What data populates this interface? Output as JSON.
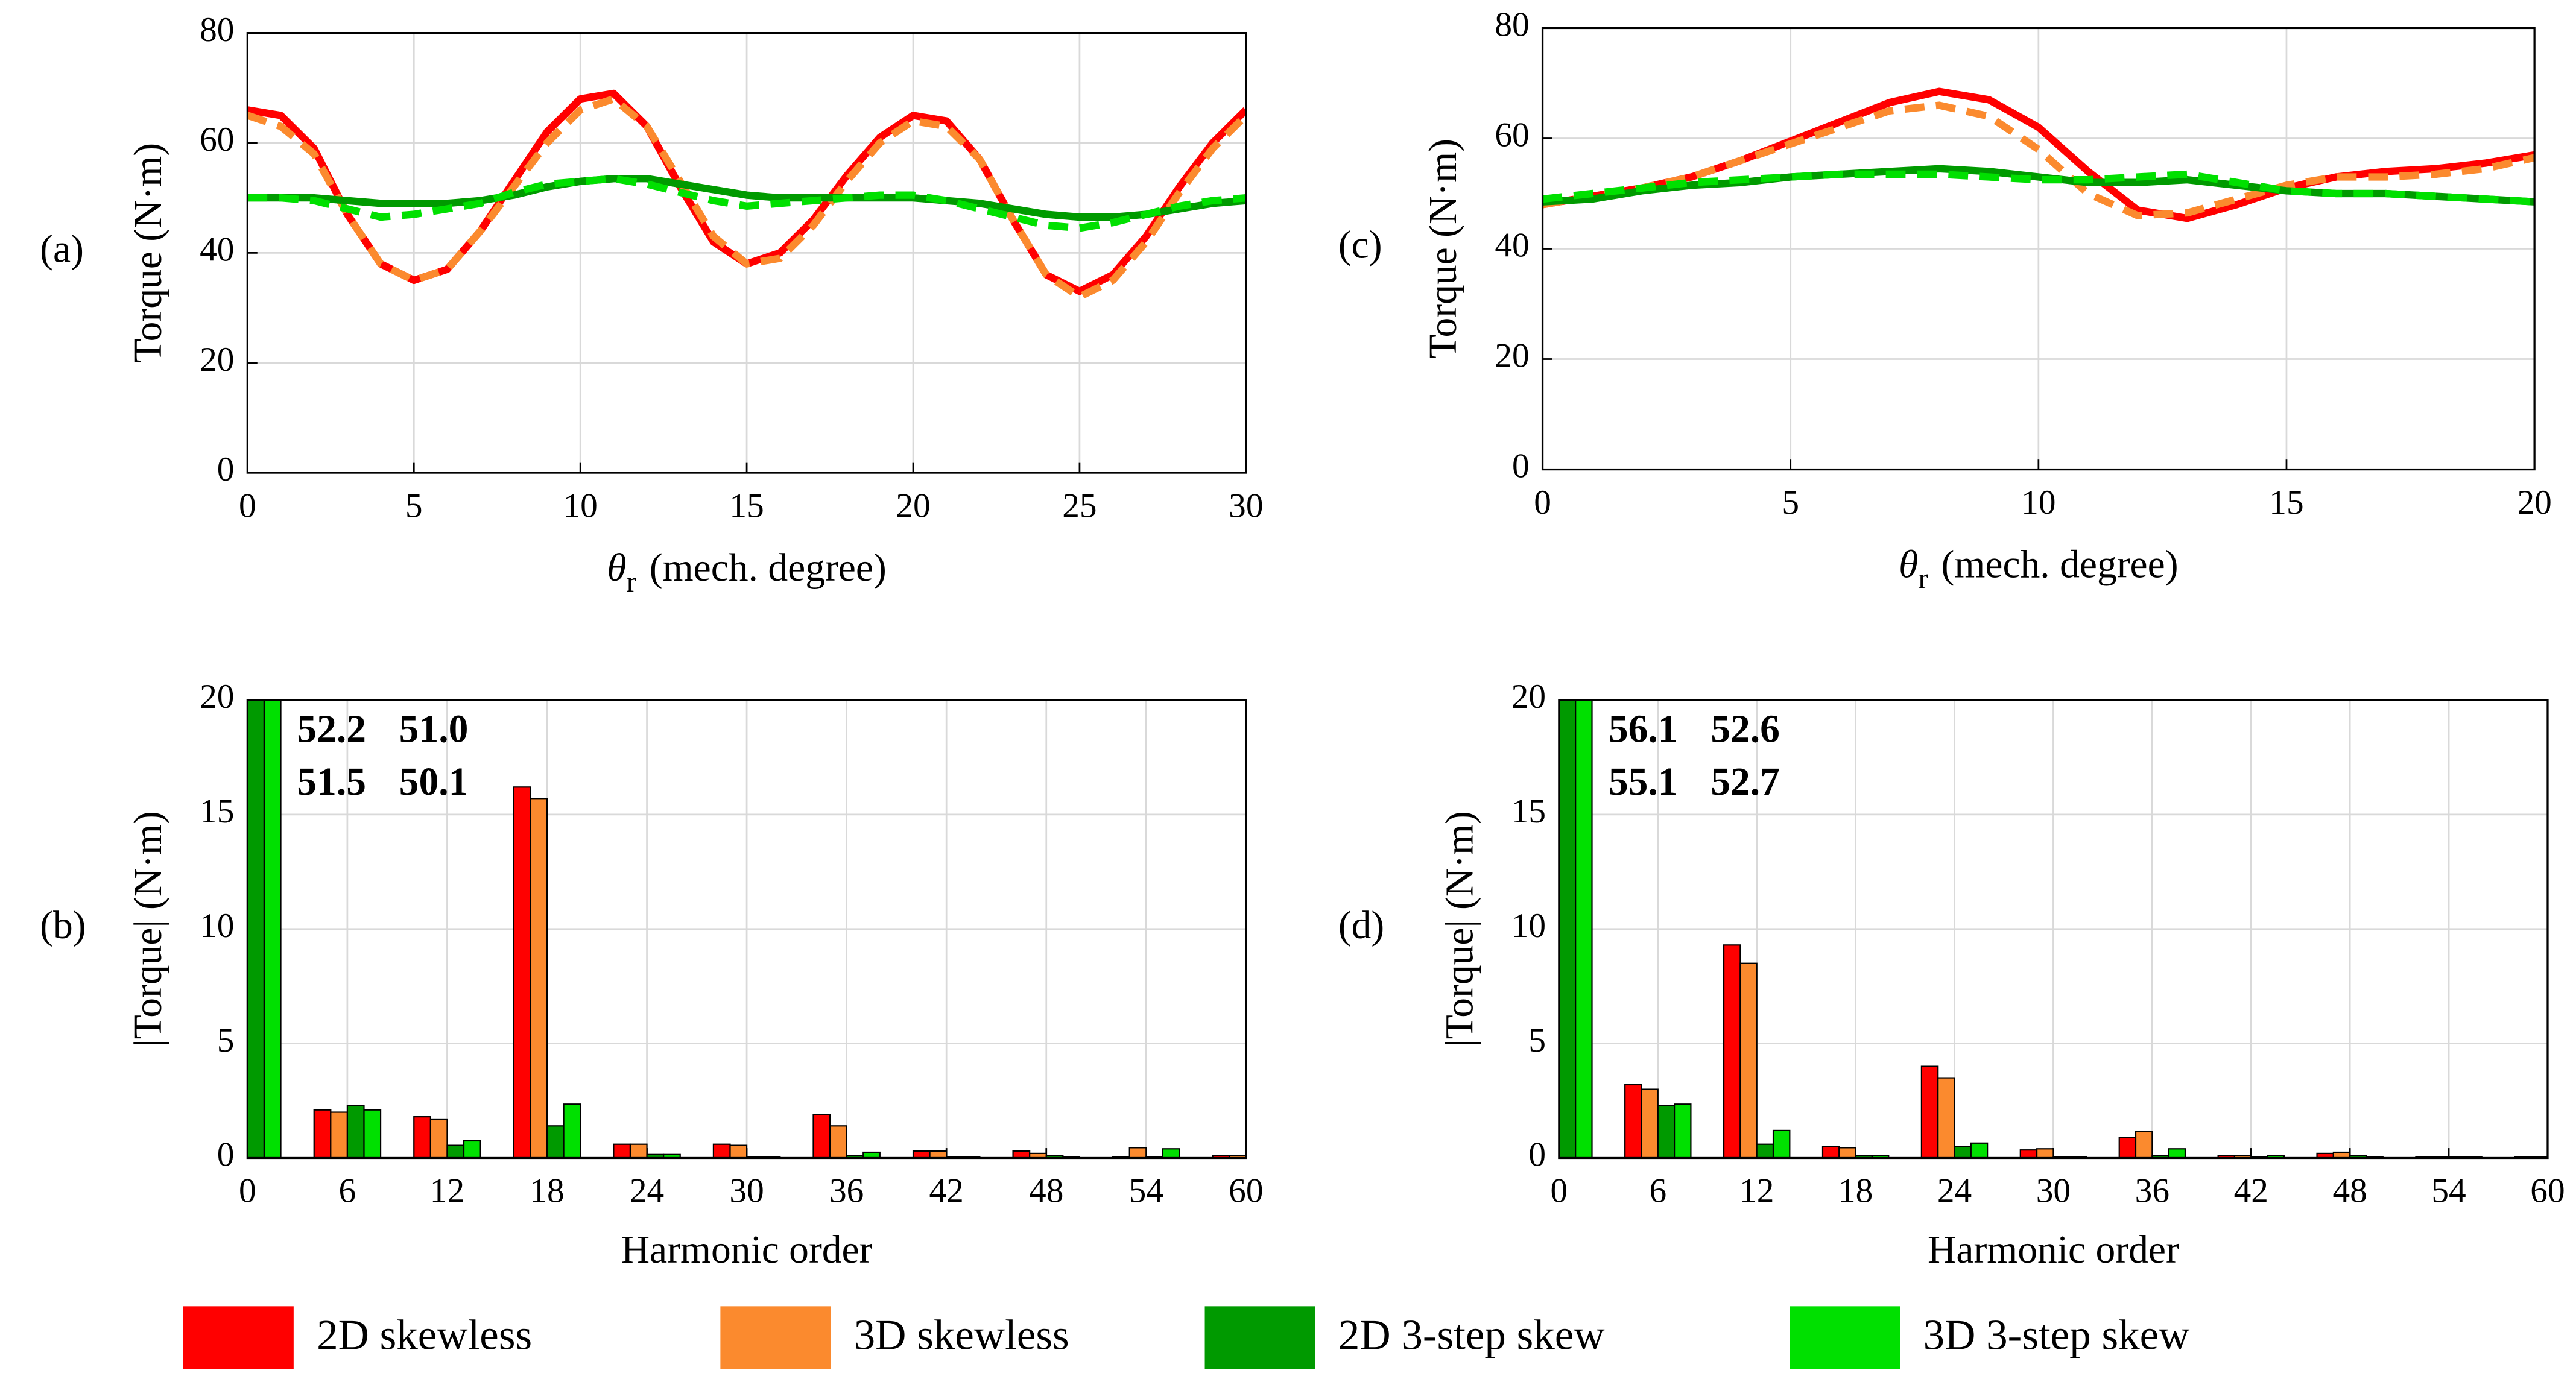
{
  "chart_data": [
    {
      "type": "line",
      "panel_label": "(a)",
      "ylabel": "Torque (N·m)",
      "xlabel": {
        "symbol": "θ",
        "subscript": "r",
        "text": "(mech. degree)"
      },
      "xlim": [
        0,
        30
      ],
      "xticks": [
        0,
        5,
        10,
        15,
        20,
        25,
        30
      ],
      "ylim": [
        0,
        80
      ],
      "yticks": [
        0,
        20,
        40,
        60,
        80
      ],
      "grid": true,
      "x": [
        0,
        1,
        2,
        3,
        4,
        5,
        6,
        7,
        8,
        9,
        10,
        11,
        12,
        13,
        14,
        15,
        16,
        17,
        18,
        19,
        20,
        21,
        22,
        23,
        24,
        25,
        26,
        27,
        28,
        29,
        30
      ],
      "series": [
        {
          "name": "2D skewless",
          "color": "#ff0000",
          "dashed": false,
          "values": [
            66,
            65,
            59,
            47,
            38,
            35,
            37,
            44,
            53,
            62,
            68,
            69,
            63,
            52,
            42,
            38,
            40,
            46,
            54,
            61,
            65,
            64,
            57,
            46,
            36,
            33,
            36,
            43,
            52,
            60,
            66
          ]
        },
        {
          "name": "3D skewless",
          "color": "#fb8a2e",
          "dashed": true,
          "values": [
            65,
            63,
            58,
            47,
            38,
            35,
            37,
            44,
            52,
            60,
            66,
            68,
            63,
            53,
            43,
            38,
            39,
            45,
            53,
            60,
            64,
            63,
            57,
            46,
            36,
            32,
            35,
            42,
            51,
            59,
            65
          ]
        },
        {
          "name": "2D 3-step skew",
          "color": "#009a00",
          "dashed": false,
          "values": [
            50,
            50,
            50,
            49.5,
            49,
            49,
            49,
            49.5,
            50.5,
            52,
            53,
            53.5,
            53.5,
            52.5,
            51.5,
            50.5,
            50,
            50,
            50,
            50,
            50,
            49.5,
            49,
            48,
            47,
            46.5,
            46.5,
            47,
            48,
            49,
            49.5
          ]
        },
        {
          "name": "3D 3-step skew",
          "color": "#00e000",
          "dashed": true,
          "values": [
            50,
            50,
            49.5,
            48,
            46.5,
            47,
            48,
            49,
            51,
            52.5,
            53,
            53.5,
            52.5,
            51,
            49.5,
            48.5,
            49,
            49.5,
            50,
            50.5,
            50.5,
            49.5,
            48,
            46.5,
            45,
            44.5,
            45.5,
            47,
            48.5,
            49.5,
            50
          ]
        }
      ]
    },
    {
      "type": "bar",
      "panel_label": "(b)",
      "ylabel": "|Torque| (N·m)",
      "xlabel": "Harmonic order",
      "xlim": [
        0,
        60
      ],
      "xticks": [
        0,
        6,
        12,
        18,
        24,
        30,
        36,
        42,
        48,
        54,
        60
      ],
      "ylim": [
        0,
        20
      ],
      "yticks": [
        0,
        5,
        10,
        15,
        20
      ],
      "grid": true,
      "x": [
        0,
        6,
        12,
        18,
        24,
        30,
        36,
        42,
        48,
        54,
        60
      ],
      "series": [
        {
          "name": "2D skewless",
          "color": "#ff0000",
          "values": [
            52.2,
            2.1,
            1.8,
            16.2,
            0.6,
            0.6,
            1.9,
            0.3,
            0.3,
            0.05,
            0.1
          ],
          "value_labels": [
            "52.2",
            null,
            null,
            null,
            null,
            null,
            null,
            null,
            null,
            null,
            null
          ]
        },
        {
          "name": "3D skewless",
          "color": "#fb8a2e",
          "values": [
            51.5,
            2.0,
            1.7,
            15.7,
            0.6,
            0.55,
            1.4,
            0.3,
            0.2,
            0.45,
            0.1
          ],
          "value_labels": [
            "51.5",
            null,
            null,
            null,
            null,
            null,
            null,
            null,
            null,
            null,
            null
          ]
        },
        {
          "name": "2D 3-step skew",
          "color": "#009a00",
          "values": [
            51.0,
            2.3,
            0.55,
            1.4,
            0.15,
            0.05,
            0.1,
            0.05,
            0.1,
            0.05,
            0.05
          ],
          "value_labels": [
            "51.0",
            null,
            null,
            null,
            null,
            null,
            null,
            null,
            null,
            null,
            null
          ]
        },
        {
          "name": "3D 3-step skew",
          "color": "#00e000",
          "values": [
            50.1,
            2.1,
            0.75,
            2.35,
            0.15,
            0.05,
            0.25,
            0.05,
            0.05,
            0.4,
            0.05
          ],
          "value_labels": [
            "50.1",
            null,
            null,
            null,
            null,
            null,
            null,
            null,
            null,
            null,
            null
          ]
        }
      ]
    },
    {
      "type": "line",
      "panel_label": "(c)",
      "ylabel": "Torque (N·m)",
      "xlabel": {
        "symbol": "θ",
        "subscript": "r",
        "text": "(mech. degree)"
      },
      "xlim": [
        0,
        20
      ],
      "xticks": [
        0,
        5,
        10,
        15,
        20
      ],
      "ylim": [
        0,
        80
      ],
      "yticks": [
        0,
        20,
        40,
        60,
        80
      ],
      "grid": true,
      "x": [
        0,
        1,
        2,
        3,
        4,
        5,
        6,
        7,
        8,
        9,
        10,
        11,
        12,
        13,
        14,
        15,
        16,
        17,
        18,
        19,
        20
      ],
      "series": [
        {
          "name": "2D skewless",
          "color": "#ff0000",
          "dashed": false,
          "values": [
            48,
            49.5,
            51,
            53,
            56,
            59.5,
            63,
            66.5,
            68.5,
            67,
            62,
            54,
            47,
            45.5,
            48,
            51,
            53,
            54,
            54.5,
            55.5,
            57
          ]
        },
        {
          "name": "3D skewless",
          "color": "#fb8a2e",
          "dashed": true,
          "values": [
            48,
            49.5,
            51,
            53,
            56,
            59,
            62,
            65,
            66,
            64,
            58,
            50,
            46,
            46.5,
            49,
            51.5,
            53,
            53,
            53.5,
            54.5,
            56.5
          ]
        },
        {
          "name": "2D 3-step skew",
          "color": "#009a00",
          "dashed": false,
          "values": [
            48.5,
            49,
            50.5,
            51.5,
            52,
            53,
            53.5,
            54,
            54.5,
            54,
            53,
            52,
            52,
            52.5,
            51.5,
            50.5,
            50,
            50,
            49.5,
            49,
            48.5
          ]
        },
        {
          "name": "3D 3-step skew",
          "color": "#00e000",
          "dashed": true,
          "values": [
            49,
            50,
            51,
            52,
            52.5,
            53,
            53.5,
            53.5,
            53.5,
            53,
            52.5,
            52.5,
            53,
            53.5,
            52,
            50.5,
            50,
            50,
            49.5,
            49,
            48.5
          ]
        }
      ]
    },
    {
      "type": "bar",
      "panel_label": "(d)",
      "ylabel": "|Torque| (N·m)",
      "xlabel": "Harmonic order",
      "xlim": [
        0,
        60
      ],
      "xticks": [
        0,
        6,
        12,
        18,
        24,
        30,
        36,
        42,
        48,
        54,
        60
      ],
      "ylim": [
        0,
        20
      ],
      "yticks": [
        0,
        5,
        10,
        15,
        20
      ],
      "grid": true,
      "x": [
        0,
        6,
        12,
        18,
        24,
        30,
        36,
        42,
        48,
        54,
        60
      ],
      "series": [
        {
          "name": "2D skewless",
          "color": "#ff0000",
          "values": [
            56.1,
            3.2,
            9.3,
            0.5,
            4.0,
            0.35,
            0.9,
            0.1,
            0.2,
            0.05,
            0.05
          ],
          "value_labels": [
            "56.1",
            null,
            null,
            null,
            null,
            null,
            null,
            null,
            null,
            null,
            null
          ]
        },
        {
          "name": "3D skewless",
          "color": "#fb8a2e",
          "values": [
            55.1,
            3.0,
            8.5,
            0.45,
            3.5,
            0.4,
            1.15,
            0.1,
            0.25,
            0.05,
            0.05
          ],
          "value_labels": [
            "55.1",
            null,
            null,
            null,
            null,
            null,
            null,
            null,
            null,
            null,
            null
          ]
        },
        {
          "name": "2D 3-step skew",
          "color": "#009a00",
          "values": [
            52.6,
            2.3,
            0.6,
            0.1,
            0.5,
            0.05,
            0.1,
            0.05,
            0.1,
            0.05,
            0.05
          ],
          "value_labels": [
            "52.6",
            null,
            null,
            null,
            null,
            null,
            null,
            null,
            null,
            null,
            null
          ]
        },
        {
          "name": "3D 3-step skew",
          "color": "#00e000",
          "values": [
            52.7,
            2.35,
            1.2,
            0.1,
            0.65,
            0.05,
            0.4,
            0.1,
            0.05,
            0.05,
            0.05
          ],
          "value_labels": [
            "52.7",
            null,
            null,
            null,
            null,
            null,
            null,
            null,
            null,
            null,
            null
          ]
        }
      ]
    }
  ]
}
